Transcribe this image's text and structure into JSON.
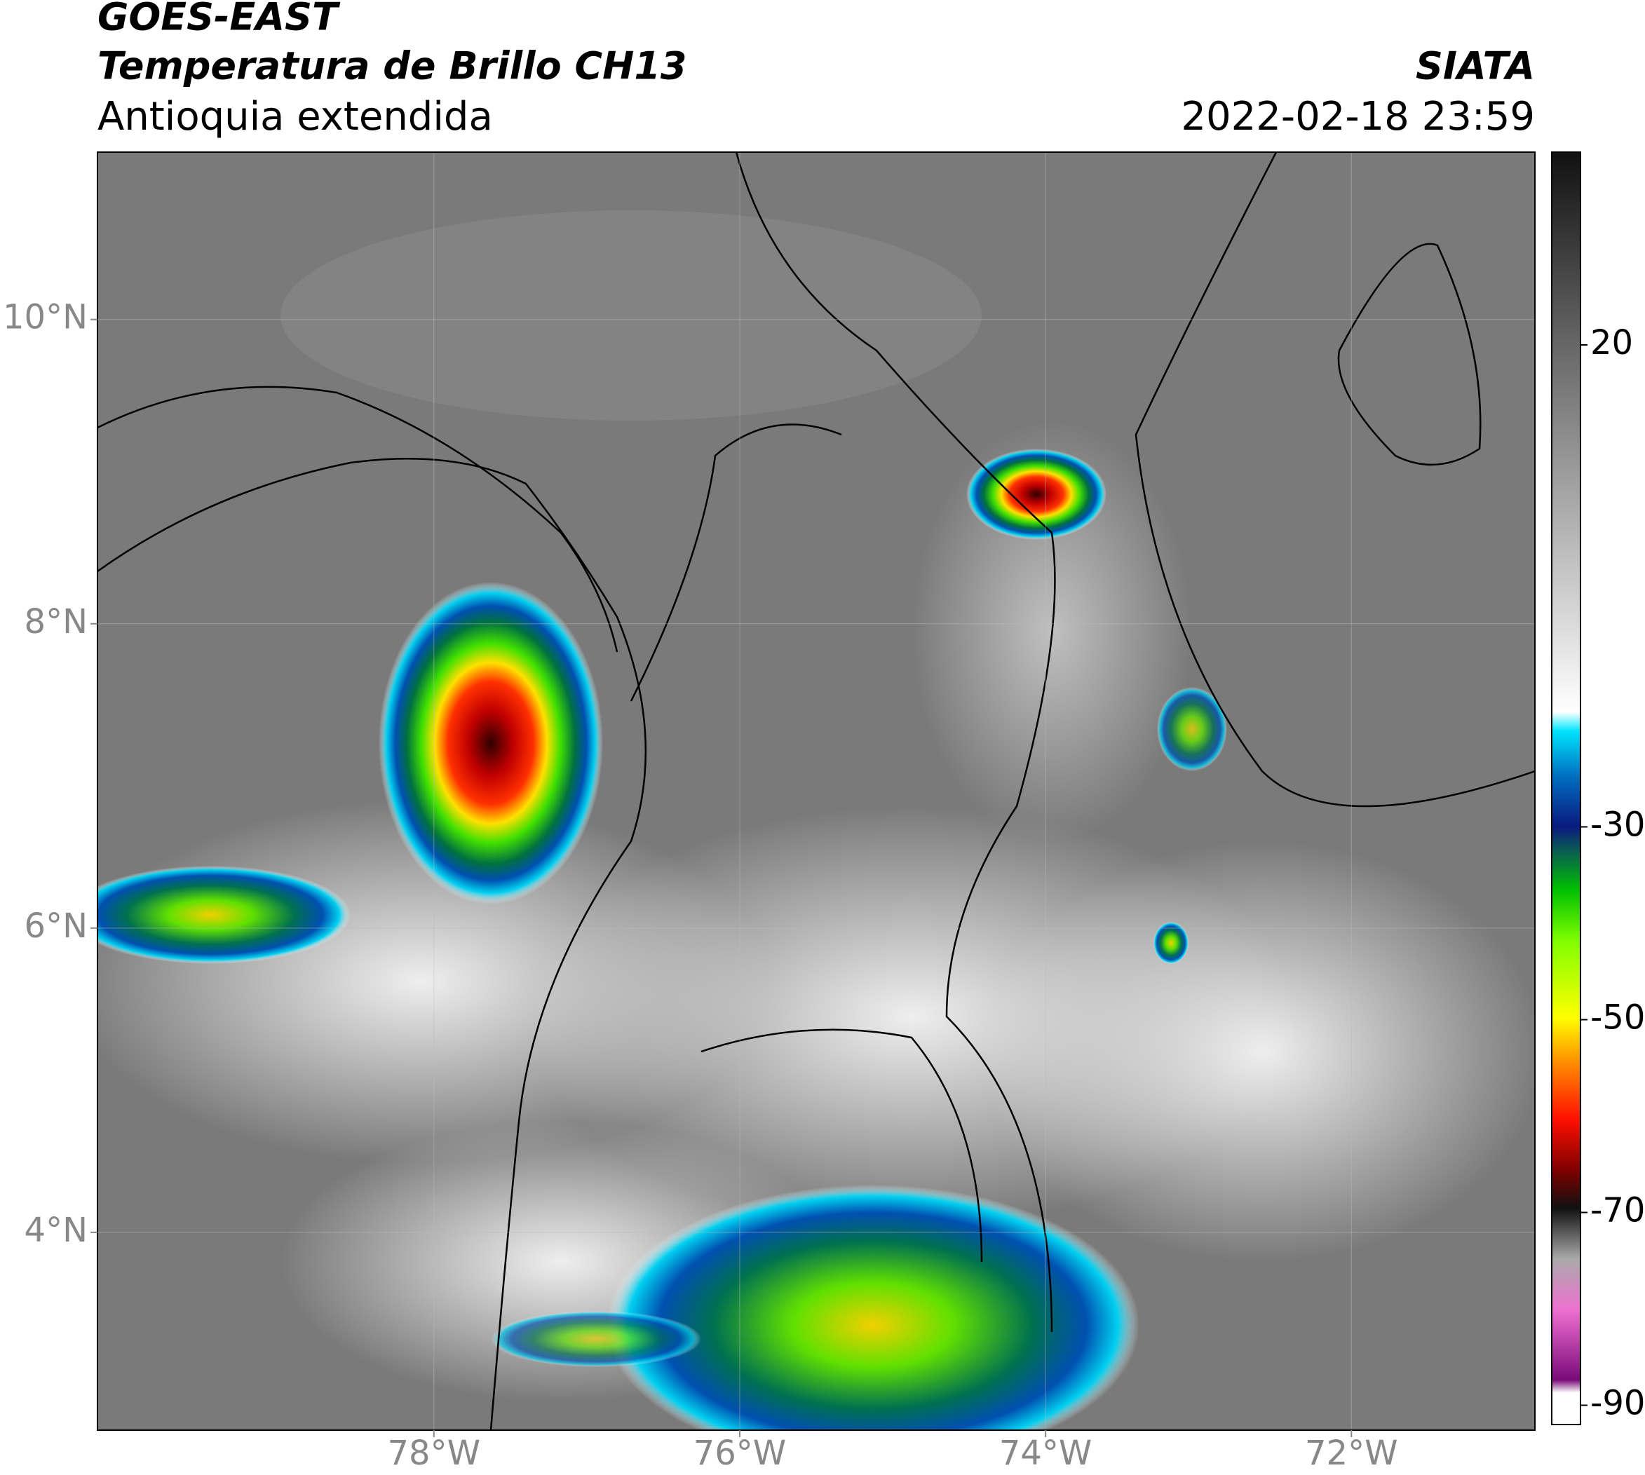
{
  "header": {
    "title": "GOES-EAST",
    "subtitle": "Temperatura de Brillo CH13",
    "region": "Antioquia extendida",
    "source": "SIATA",
    "datetime": "2022-02-18 23:59"
  },
  "map": {
    "xlim": [
      -80.2,
      -70.8
    ],
    "ylim": [
      2.7,
      11.1
    ],
    "xticks": [
      {
        "value": -78,
        "label": "78°W"
      },
      {
        "value": -76,
        "label": "76°W"
      },
      {
        "value": -74,
        "label": "74°W"
      },
      {
        "value": -72,
        "label": "72°W"
      }
    ],
    "yticks": [
      {
        "value": 4,
        "label": "4°N"
      },
      {
        "value": 6,
        "label": "6°N"
      },
      {
        "value": 8,
        "label": "8°N"
      },
      {
        "value": 10,
        "label": "10°N"
      }
    ],
    "grid": true
  },
  "colorbar": {
    "lim": [
      -92,
      40
    ],
    "ticks": [
      20,
      -30,
      -50,
      -70,
      -90
    ]
  }
}
